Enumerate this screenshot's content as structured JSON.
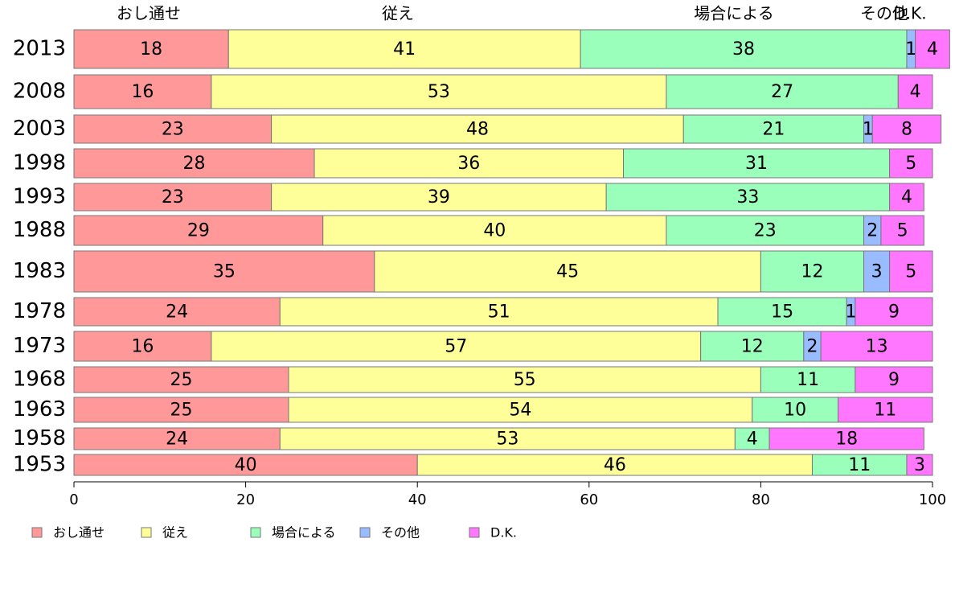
{
  "chart_data": {
    "type": "bar",
    "orientation": "horizontal",
    "stacked": true,
    "categories": [
      "2013",
      "2008",
      "2003",
      "1998",
      "1993",
      "1988",
      "1983",
      "1978",
      "1973",
      "1968",
      "1963",
      "1958",
      "1953"
    ],
    "series": [
      {
        "name": "おし通せ",
        "color": "#ff9999",
        "values": [
          18,
          16,
          23,
          28,
          23,
          29,
          35,
          24,
          16,
          25,
          25,
          24,
          40
        ]
      },
      {
        "name": "従え",
        "color": "#ffff99",
        "values": [
          41,
          53,
          48,
          36,
          39,
          40,
          45,
          51,
          57,
          55,
          54,
          53,
          46
        ]
      },
      {
        "name": "場合による",
        "color": "#99ffbb",
        "values": [
          38,
          27,
          21,
          31,
          33,
          23,
          12,
          15,
          12,
          11,
          10,
          4,
          11
        ]
      },
      {
        "name": "その他",
        "color": "#99bbff",
        "values": [
          1,
          0,
          1,
          0,
          0,
          2,
          3,
          1,
          2,
          0,
          0,
          0,
          0
        ]
      },
      {
        "name": "D.K.",
        "color": "#ff77ff",
        "values": [
          4,
          4,
          8,
          5,
          4,
          5,
          5,
          9,
          13,
          9,
          11,
          18,
          3
        ]
      }
    ],
    "top_labels": [
      "おし通せ",
      "従え",
      "場合による",
      "その他",
      "D.K."
    ],
    "xlim": [
      0,
      100
    ],
    "xticks": [
      0,
      20,
      40,
      60,
      80,
      100
    ],
    "legend": "bottom-left",
    "grid": false
  }
}
